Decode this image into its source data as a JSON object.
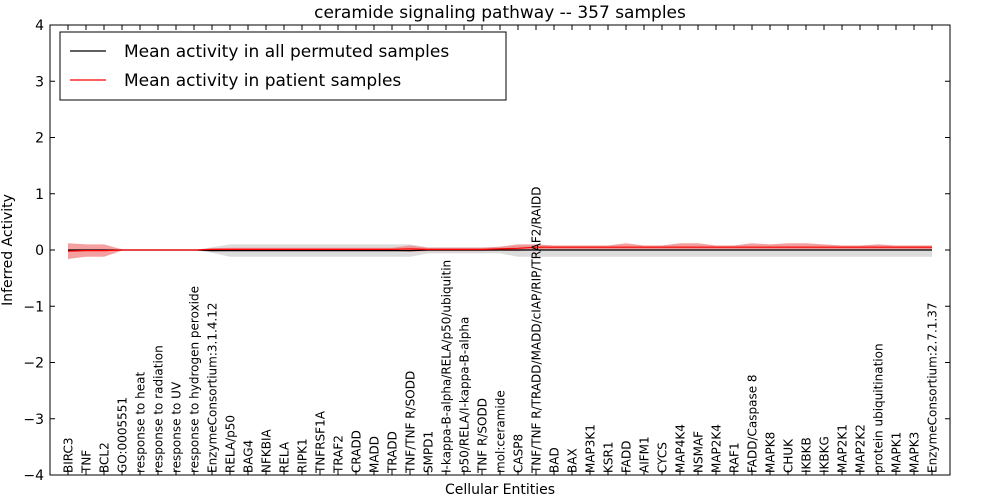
{
  "chart_data": {
    "type": "line",
    "title": "ceramide signaling pathway -- 357 samples",
    "xlabel": "Cellular Entities",
    "ylabel": "Inferred Activity",
    "ylim": [
      -4,
      4
    ],
    "yticks": [
      -4,
      -3,
      -2,
      -1,
      0,
      1,
      2,
      3,
      4
    ],
    "ytick_labels": [
      "−4",
      "−3",
      "−2",
      "−1",
      "0",
      "1",
      "2",
      "3",
      "4"
    ],
    "grid": false,
    "legend_position": "top-left",
    "categories": [
      "BIRC3",
      "TNF",
      "BCL2",
      "GO:0005551",
      "response to heat",
      "response to radiation",
      "response to UV",
      "response to hydrogen peroxide",
      "EnzymeConsortium:3.1.4.12",
      "RELA/p50",
      "BAG4",
      "NFKBIA",
      "RELA",
      "RIPK1",
      "TNFRSF1A",
      "TRAF2",
      "CRADD",
      "MADD",
      "TRADD",
      "TNF/TNF R/SODD",
      "SMPD1",
      "I-kappa-B-alpha/RELA/p50/ubiquitin",
      "p50/RELA/I-kappa-B-alpha",
      "TNF R/SODD",
      "mol:ceramide",
      "CASP8",
      "TNF/TNF R/TRADD/MADD/cIAP/RIP/TRAF2/RAIDD",
      "BAD",
      "BAX",
      "MAP3K1",
      "KSR1",
      "FADD",
      "AIFM1",
      "CYCS",
      "MAP4K4",
      "NSMAF",
      "MAP2K4",
      "RAF1",
      "FADD/Caspase 8",
      "MAPK8",
      "CHUK",
      "IKBKB",
      "IKBKG",
      "MAP2K1",
      "MAP2K2",
      "protein ubiquitination",
      "MAPK1",
      "MAPK3",
      "EnzymeConsortium:2.7.1.37"
    ],
    "series": [
      {
        "name": "Mean activity in all permuted samples",
        "color": "#000000",
        "band_color": "#c0c0c0",
        "values": [
          0,
          0,
          0,
          0,
          0,
          0,
          0,
          0,
          -0.01,
          -0.01,
          -0.01,
          -0.01,
          -0.01,
          -0.01,
          -0.01,
          -0.01,
          -0.01,
          -0.01,
          -0.01,
          -0.01,
          0,
          0,
          0,
          0,
          0,
          0,
          0,
          0,
          0,
          0,
          0,
          0,
          0,
          0,
          0,
          0,
          0,
          0,
          0,
          0,
          0,
          0,
          0,
          0,
          0,
          0,
          0,
          0,
          0
        ],
        "band_upper": [
          0.01,
          0.01,
          0.01,
          0,
          0,
          0,
          0,
          0,
          0.05,
          0.1,
          0.1,
          0.1,
          0.1,
          0.1,
          0.1,
          0.1,
          0.1,
          0.1,
          0.1,
          0.1,
          0.05,
          0.05,
          0.05,
          0.05,
          0.05,
          0.08,
          0.08,
          0.08,
          0.08,
          0.08,
          0.08,
          0.08,
          0.08,
          0.08,
          0.08,
          0.08,
          0.08,
          0.08,
          0.08,
          0.08,
          0.08,
          0.08,
          0.08,
          0.08,
          0.08,
          0.08,
          0.08,
          0.08,
          0.08
        ],
        "band_lower": [
          -0.01,
          -0.01,
          -0.01,
          0,
          0,
          0,
          0,
          0,
          -0.05,
          -0.12,
          -0.12,
          -0.12,
          -0.12,
          -0.12,
          -0.12,
          -0.12,
          -0.12,
          -0.12,
          -0.12,
          -0.12,
          -0.06,
          -0.06,
          -0.06,
          -0.06,
          -0.06,
          -0.12,
          -0.12,
          -0.12,
          -0.12,
          -0.12,
          -0.12,
          -0.12,
          -0.12,
          -0.12,
          -0.12,
          -0.12,
          -0.12,
          -0.12,
          -0.12,
          -0.12,
          -0.12,
          -0.12,
          -0.12,
          -0.12,
          -0.12,
          -0.12,
          -0.12,
          -0.12,
          -0.12
        ]
      },
      {
        "name": "Mean activity in patient samples",
        "color": "#ff0000",
        "band_color": "#f08080",
        "values": [
          -0.02,
          -0.01,
          -0.01,
          0,
          0,
          0,
          0,
          0,
          0.01,
          0.01,
          0.01,
          0.01,
          0.01,
          0.01,
          0.01,
          0.01,
          0.01,
          0.01,
          0.01,
          0.02,
          0.01,
          0.01,
          0.01,
          0.01,
          0.02,
          0.03,
          0.05,
          0.05,
          0.05,
          0.05,
          0.05,
          0.05,
          0.05,
          0.05,
          0.05,
          0.05,
          0.05,
          0.05,
          0.05,
          0.05,
          0.05,
          0.05,
          0.05,
          0.05,
          0.05,
          0.05,
          0.05,
          0.05,
          0.05
        ],
        "band_upper": [
          0.12,
          0.1,
          0.1,
          0.01,
          0,
          0,
          0,
          0,
          0.03,
          0.04,
          0.04,
          0.04,
          0.04,
          0.04,
          0.04,
          0.04,
          0.04,
          0.04,
          0.04,
          0.08,
          0.04,
          0.04,
          0.04,
          0.04,
          0.06,
          0.1,
          0.1,
          0.08,
          0.08,
          0.08,
          0.08,
          0.12,
          0.08,
          0.08,
          0.12,
          0.12,
          0.08,
          0.08,
          0.12,
          0.1,
          0.12,
          0.12,
          0.1,
          0.08,
          0.08,
          0.1,
          0.08,
          0.08,
          0.08
        ],
        "band_lower": [
          -0.16,
          -0.12,
          -0.12,
          -0.01,
          0,
          0,
          0,
          0,
          -0.02,
          -0.01,
          -0.01,
          -0.01,
          -0.01,
          -0.01,
          -0.01,
          -0.01,
          -0.01,
          -0.01,
          -0.01,
          -0.03,
          -0.02,
          -0.02,
          -0.02,
          -0.02,
          -0.01,
          -0.02,
          0.01,
          0.01,
          0.01,
          0.01,
          0.01,
          0.01,
          0.01,
          0.01,
          0.01,
          0.01,
          0.01,
          0.01,
          0.01,
          0.01,
          0.01,
          0.01,
          0.01,
          0.01,
          0.01,
          0.01,
          0.01,
          0.01,
          0.01
        ]
      }
    ]
  }
}
